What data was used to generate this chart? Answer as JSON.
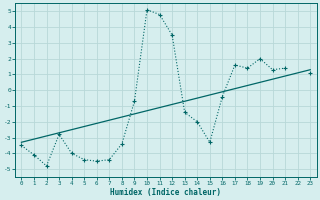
{
  "xlabel": "Humidex (Indice chaleur)",
  "background_color": "#d6eeee",
  "grid_color": "#b8d8d8",
  "line_color": "#006666",
  "x_data": [
    0,
    1,
    2,
    3,
    4,
    5,
    6,
    7,
    8,
    9,
    10,
    11,
    12,
    13,
    14,
    15,
    16,
    17,
    18,
    19,
    20,
    21,
    22,
    23
  ],
  "y_scatter": [
    -3.5,
    -4.1,
    -4.8,
    -2.8,
    -4.0,
    -4.4,
    -4.5,
    -4.4,
    -3.4,
    -0.7,
    5.1,
    4.8,
    3.5,
    -1.4,
    -2.0,
    -3.3,
    -0.4,
    1.6,
    1.4,
    2.0,
    1.3,
    1.4,
    null,
    1.1
  ],
  "y_trend_x": [
    0,
    23
  ],
  "y_trend_y": [
    -3.3,
    1.3
  ],
  "ylim": [
    -5.5,
    5.5
  ],
  "xlim": [
    -0.5,
    23.5
  ],
  "yticks": [
    -5,
    -4,
    -3,
    -2,
    -1,
    0,
    1,
    2,
    3,
    4,
    5
  ],
  "xticks": [
    0,
    1,
    2,
    3,
    4,
    5,
    6,
    7,
    8,
    9,
    10,
    11,
    12,
    13,
    14,
    15,
    16,
    17,
    18,
    19,
    20,
    21,
    22,
    23
  ]
}
